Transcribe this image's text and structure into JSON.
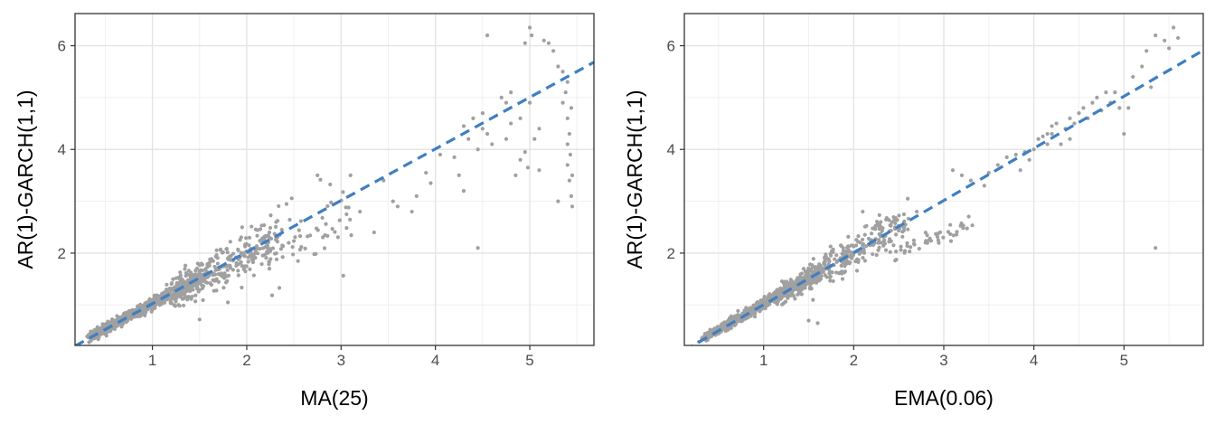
{
  "chart_data": [
    {
      "type": "scatter",
      "xlabel": "MA(25)",
      "ylabel": "AR(1)-GARCH(1,1)",
      "xlim": [
        0.18,
        5.68
      ],
      "ylim": [
        0.22,
        6.62
      ],
      "xticks": [
        1,
        2,
        3,
        4,
        5
      ],
      "yticks": [
        2,
        4,
        6
      ],
      "grid": true,
      "point_color": "#a0a0a0",
      "line_color": "#3f7fc1",
      "fit_line": {
        "style": "dashed",
        "slope": 0.995,
        "intercept": 0.03
      },
      "clusters": [
        {
          "x0": 0.35,
          "x1": 1.6,
          "n": 650,
          "slope": 0.96,
          "intercept": 0.06,
          "spread": 0.07,
          "seed": 1
        },
        {
          "x0": 1.2,
          "x1": 2.35,
          "n": 330,
          "slope": 0.98,
          "intercept": 0.03,
          "spread": 0.16,
          "seed": 2
        },
        {
          "x0": 2.2,
          "x1": 3.15,
          "n": 55,
          "slope": 0.88,
          "intercept": 0.05,
          "spread": 0.22,
          "seed": 3
        }
      ],
      "points": [
        [
          1.5,
          0.72
        ],
        [
          1.8,
          1.05
        ],
        [
          2.75,
          3.5
        ],
        [
          3.1,
          3.5
        ],
        [
          3.45,
          3.4
        ],
        [
          3.55,
          3.0
        ],
        [
          3.75,
          2.8
        ],
        [
          3.8,
          3.1
        ],
        [
          3.6,
          2.9
        ],
        [
          3.2,
          2.8
        ],
        [
          3.35,
          2.4
        ],
        [
          3.9,
          3.55
        ],
        [
          3.95,
          3.35
        ],
        [
          4.05,
          3.9
        ],
        [
          4.2,
          3.85
        ],
        [
          4.25,
          3.5
        ],
        [
          4.3,
          3.2
        ],
        [
          4.3,
          4.45
        ],
        [
          4.35,
          4.2
        ],
        [
          4.4,
          4.6
        ],
        [
          4.45,
          4.0
        ],
        [
          4.45,
          2.1
        ],
        [
          4.5,
          4.4
        ],
        [
          4.5,
          4.7
        ],
        [
          4.55,
          4.3
        ],
        [
          4.55,
          6.2
        ],
        [
          4.6,
          4.1
        ],
        [
          4.75,
          4.2
        ],
        [
          4.75,
          4.9
        ],
        [
          4.8,
          5.1
        ],
        [
          4.8,
          4.5
        ],
        [
          4.85,
          3.5
        ],
        [
          4.9,
          4.6
        ],
        [
          4.95,
          3.95
        ],
        [
          4.9,
          3.8
        ],
        [
          5.0,
          4.9
        ],
        [
          5.0,
          6.35
        ],
        [
          5.02,
          6.2
        ],
        [
          5.05,
          4.2
        ],
        [
          5.1,
          4.4
        ],
        [
          5.1,
          3.6
        ],
        [
          4.98,
          3.65
        ],
        [
          5.2,
          6.05
        ],
        [
          5.25,
          5.9
        ],
        [
          5.3,
          5.6
        ],
        [
          5.3,
          3.0
        ],
        [
          5.35,
          5.5
        ],
        [
          5.35,
          4.9
        ],
        [
          5.38,
          5.1
        ],
        [
          5.4,
          4.6
        ],
        [
          5.4,
          4.1
        ],
        [
          5.4,
          3.7
        ],
        [
          5.42,
          3.4
        ],
        [
          5.44,
          3.1
        ],
        [
          5.45,
          2.9
        ],
        [
          5.4,
          5.3
        ],
        [
          5.42,
          4.3
        ],
        [
          5.43,
          3.9
        ],
        [
          5.45,
          3.5
        ],
        [
          5.44,
          4.8
        ],
        [
          4.7,
          5.0
        ],
        [
          4.95,
          6.05
        ],
        [
          5.15,
          6.1
        ]
      ]
    },
    {
      "type": "scatter",
      "xlabel": "EMA(0.06)",
      "ylabel": "AR(1)-GARCH(1,1)",
      "xlim": [
        0.12,
        5.88
      ],
      "ylim": [
        0.22,
        6.62
      ],
      "xticks": [
        1,
        2,
        3,
        4,
        5
      ],
      "yticks": [
        2,
        4,
        6
      ],
      "grid": true,
      "point_color": "#a0a0a0",
      "line_color": "#3f7fc1",
      "fit_line": {
        "style": "dashed",
        "slope": 1.005,
        "intercept": 0.0
      },
      "clusters": [
        {
          "x0": 0.35,
          "x1": 1.6,
          "n": 650,
          "slope": 0.98,
          "intercept": 0.04,
          "spread": 0.06,
          "seed": 4
        },
        {
          "x0": 1.2,
          "x1": 2.6,
          "n": 330,
          "slope": 0.99,
          "intercept": 0.02,
          "spread": 0.12,
          "seed": 5
        },
        {
          "x0": 2.5,
          "x1": 3.3,
          "n": 45,
          "slope": 0.78,
          "intercept": 0.02,
          "spread": 0.05,
          "seed": 6
        }
      ],
      "points": [
        [
          1.6,
          0.65
        ],
        [
          1.5,
          0.7
        ],
        [
          2.1,
          2.8
        ],
        [
          2.3,
          2.6
        ],
        [
          2.6,
          3.05
        ],
        [
          2.7,
          2.8
        ],
        [
          3.1,
          3.6
        ],
        [
          3.2,
          3.5
        ],
        [
          3.3,
          3.4
        ],
        [
          3.45,
          3.3
        ],
        [
          3.5,
          3.55
        ],
        [
          3.6,
          3.7
        ],
        [
          3.7,
          3.85
        ],
        [
          3.8,
          3.9
        ],
        [
          3.85,
          3.6
        ],
        [
          3.9,
          3.95
        ],
        [
          4.0,
          4.0
        ],
        [
          4.05,
          4.2
        ],
        [
          4.1,
          4.25
        ],
        [
          4.15,
          4.1
        ],
        [
          4.2,
          4.3
        ],
        [
          4.2,
          4.45
        ],
        [
          4.25,
          4.5
        ],
        [
          4.3,
          4.1
        ],
        [
          4.35,
          4.4
        ],
        [
          4.4,
          4.6
        ],
        [
          4.45,
          4.5
        ],
        [
          4.5,
          4.7
        ],
        [
          4.55,
          4.8
        ],
        [
          4.6,
          4.6
        ],
        [
          4.65,
          4.9
        ],
        [
          4.7,
          5.0
        ],
        [
          4.75,
          4.75
        ],
        [
          4.8,
          5.1
        ],
        [
          4.85,
          4.9
        ],
        [
          4.9,
          5.1
        ],
        [
          4.95,
          4.8
        ],
        [
          5.0,
          4.3
        ],
        [
          5.05,
          4.8
        ],
        [
          5.1,
          5.4
        ],
        [
          5.2,
          5.6
        ],
        [
          5.25,
          5.9
        ],
        [
          5.3,
          5.2
        ],
        [
          5.35,
          2.1
        ],
        [
          5.35,
          6.2
        ],
        [
          5.45,
          6.1
        ],
        [
          5.5,
          5.95
        ],
        [
          5.55,
          6.35
        ],
        [
          5.6,
          6.15
        ],
        [
          4.15,
          4.3
        ],
        [
          3.95,
          3.8
        ],
        [
          4.4,
          4.2
        ]
      ]
    }
  ]
}
